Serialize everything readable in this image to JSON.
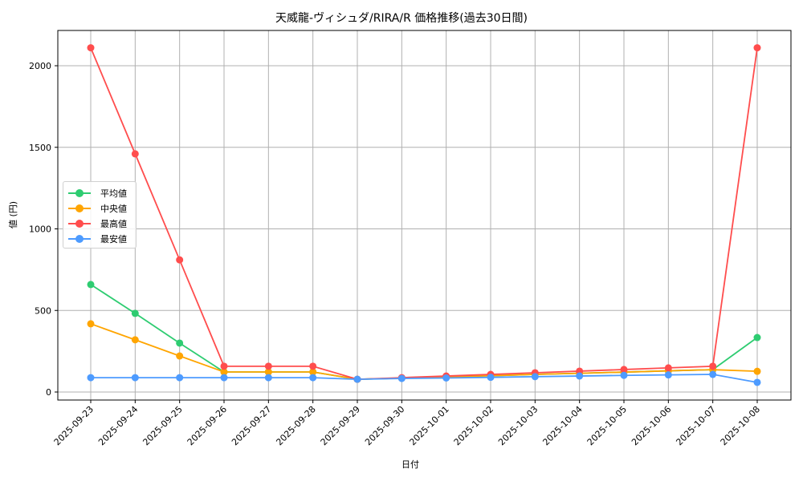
{
  "chart_data": {
    "type": "line",
    "title": "天威龍-ヴィシュダ/RIRA/R 価格推移(過去30日間)",
    "xlabel": "日付",
    "ylabel": "値 (円)",
    "ylim": [
      -50,
      2210
    ],
    "yticks": [
      0,
      500,
      1000,
      1500,
      2000
    ],
    "grid": true,
    "legend_position": "center left",
    "categories": [
      "2025-09-23",
      "2025-09-24",
      "2025-09-25",
      "2025-09-26",
      "2025-09-27",
      "2025-09-28",
      "2025-09-29",
      "2025-09-30",
      "2025-10-01",
      "2025-10-02",
      "2025-10-03",
      "2025-10-04",
      "2025-10-05",
      "2025-10-06",
      "2025-10-07",
      "2025-10-08"
    ],
    "series": [
      {
        "name": "平均値",
        "color": "#2ecc71",
        "values": [
          659,
          482,
          300,
          123,
          123,
          123,
          78,
          85,
          92,
          100,
          108,
          115,
          122,
          130,
          137,
          334
        ]
      },
      {
        "name": "中央値",
        "color": "#ffa500",
        "values": [
          418,
          320,
          221,
          123,
          123,
          123,
          78,
          85,
          92,
          100,
          108,
          115,
          122,
          130,
          137,
          127
        ]
      },
      {
        "name": "最高値",
        "color": "#ff4d4d",
        "values": [
          2110,
          1460,
          810,
          158,
          158,
          158,
          78,
          88,
          98,
          108,
          118,
          128,
          138,
          148,
          158,
          2110
        ]
      },
      {
        "name": "最安値",
        "color": "#4d9bff",
        "values": [
          88,
          88,
          88,
          88,
          88,
          88,
          78,
          83,
          86,
          90,
          94,
          98,
          102,
          105,
          108,
          59
        ]
      }
    ]
  }
}
